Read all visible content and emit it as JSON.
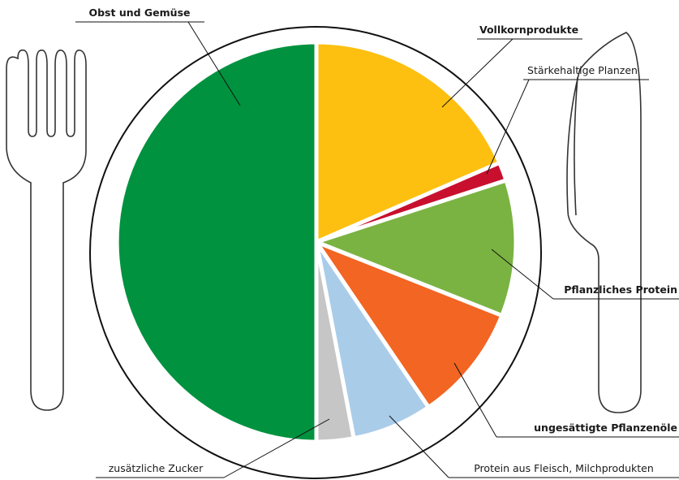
{
  "chart_data": {
    "type": "pie",
    "categories": [
      "Vollkornprodukte",
      "Stärkehaltige Planzen",
      "Pflanzliches Protein",
      "ungesättigte Pflanzenöle",
      "Protein aus Fleisch, Milchprodukten",
      "zusätzliche Zucker",
      "Obst und Gemüse"
    ],
    "values": [
      18.5,
      1.5,
      11,
      9.5,
      6.5,
      3,
      50
    ],
    "colors": [
      "#fdc010",
      "#c8102e",
      "#7ab342",
      "#f26522",
      "#a9cce9",
      "#c6c6c6",
      "#00923f"
    ]
  }
}
